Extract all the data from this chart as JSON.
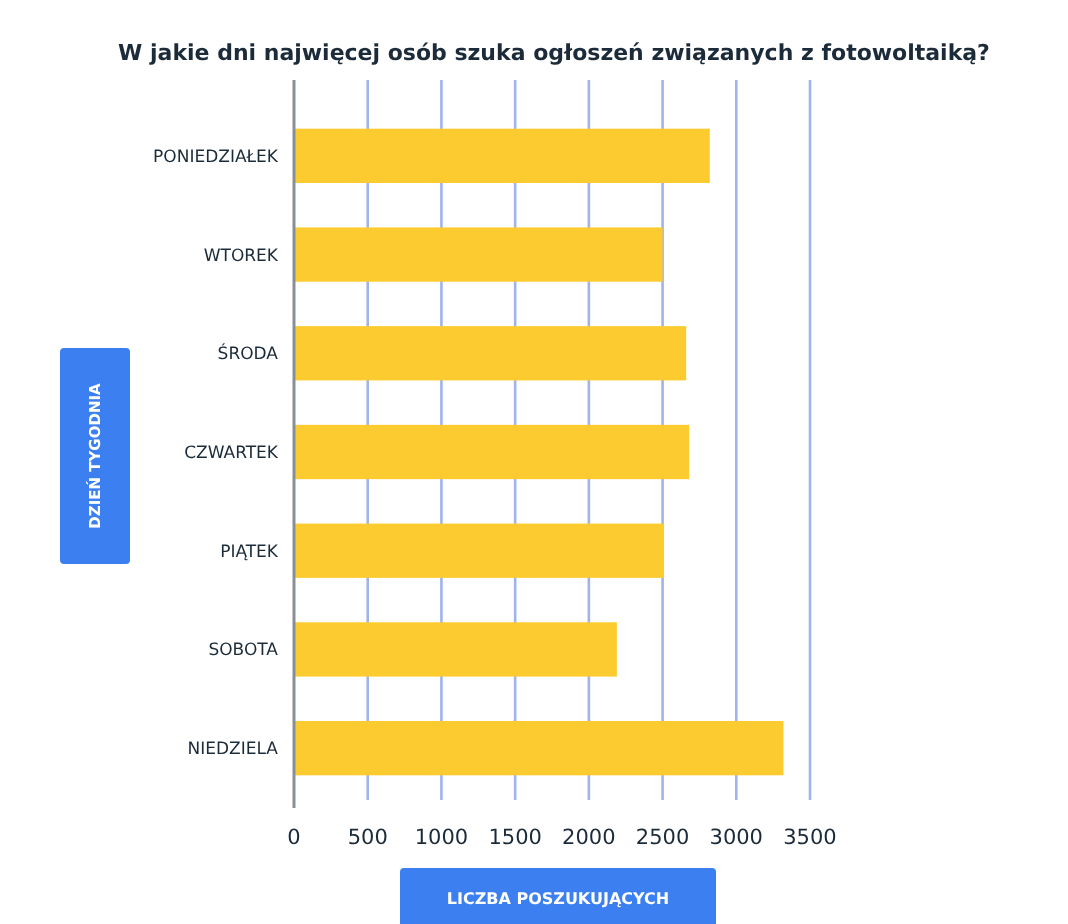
{
  "chart_data": {
    "type": "bar",
    "orientation": "horizontal",
    "title": "W jakie dni najwięcej osób szuka ogłoszeń związanych z fotowoltaiką?",
    "xlabel": "LICZBA POSZUKUJĄCYCH",
    "ylabel": "DZIEŃ TYGODNIA",
    "categories": [
      "PONIEDZIAŁEK",
      "WTOREK",
      "ŚRODA",
      "CZWARTEK",
      "PIĄTEK",
      "SOBOTA",
      "NIEDZIELA"
    ],
    "values": [
      2820,
      2500,
      2660,
      2680,
      2510,
      2190,
      3320
    ],
    "color": "#fccb30",
    "xlim": [
      0,
      3500
    ],
    "xticks": [
      0,
      500,
      1000,
      1500,
      2000,
      2500,
      3000,
      3500
    ],
    "grid": "x"
  }
}
